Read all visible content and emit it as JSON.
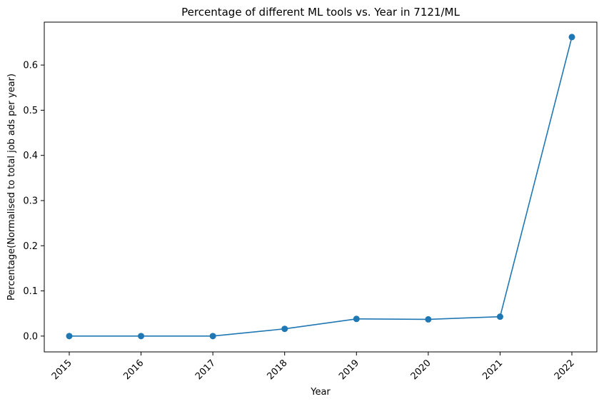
{
  "chart_data": {
    "type": "line",
    "title": "Percentage of different ML tools vs. Year in 7121/ML",
    "xlabel": "Year",
    "ylabel": "Percentage(Normalised to total job ads per year)",
    "categories": [
      "2015",
      "2016",
      "2017",
      "2018",
      "2019",
      "2020",
      "2021",
      "2022"
    ],
    "series": [
      {
        "values": [
          0.0,
          0.0,
          0.0,
          0.016,
          0.038,
          0.037,
          0.043,
          0.662
        ],
        "color": "#1f77b4",
        "marker": "circle"
      }
    ],
    "ylim": [
      -0.035,
      0.695
    ],
    "yticks": [
      0.0,
      0.1,
      0.2,
      0.3,
      0.4,
      0.5,
      0.6
    ],
    "ytick_labels": [
      "0.0",
      "0.1",
      "0.2",
      "0.3",
      "0.4",
      "0.5",
      "0.6"
    ],
    "xtick_rotation": 45,
    "grid": false,
    "legend": "none"
  }
}
